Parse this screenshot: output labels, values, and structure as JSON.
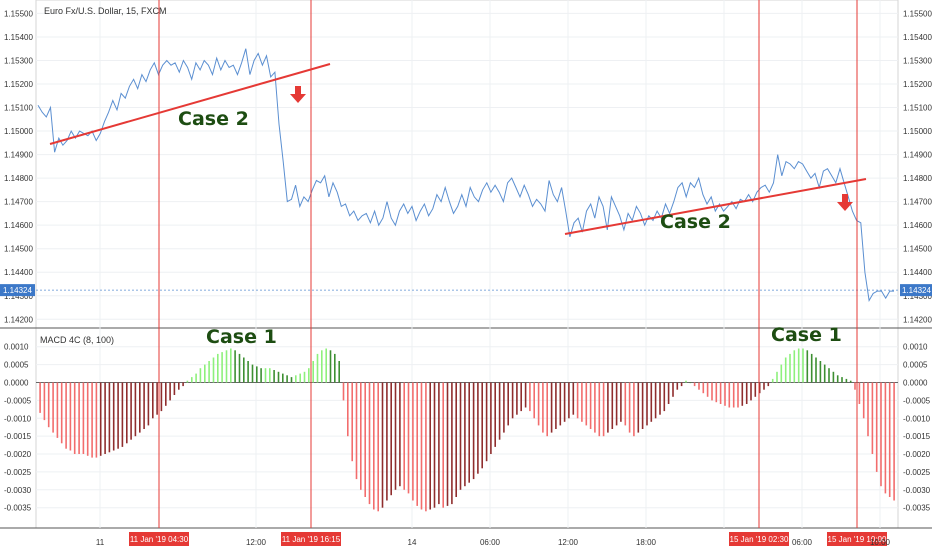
{
  "chart_data": [
    {
      "type": "line",
      "title": "Euro Fx/U.S. Dollar, 15, FXCM",
      "y_ticks": [
        "1.15500",
        "1.15400",
        "1.15300",
        "1.15200",
        "1.15100",
        "1.15000",
        "1.14900",
        "1.14800",
        "1.14700",
        "1.14600",
        "1.14500",
        "1.14400",
        "1.14300",
        "1.14200"
      ],
      "ylim": [
        1.1418,
        1.1554
      ],
      "x_labels": [
        "11",
        "12:00",
        "14",
        "06:00",
        "12:00",
        "18:00",
        "06:00",
        "10:00"
      ],
      "last_price": "1.14324",
      "grid": true,
      "series": [
        {
          "color": "#5b8fd1",
          "values": [
            1.1511,
            1.1508,
            1.1506,
            1.151,
            1.1491,
            1.1497,
            1.1494,
            1.1496,
            1.15,
            1.1497,
            1.15,
            1.1499,
            1.1498,
            1.15,
            1.1496,
            1.1499,
            1.1504,
            1.1508,
            1.1513,
            1.1509,
            1.1516,
            1.1514,
            1.1519,
            1.1522,
            1.1518,
            1.1524,
            1.1521,
            1.1526,
            1.1529,
            1.1524,
            1.1528,
            1.153,
            1.1528,
            1.1529,
            1.1525,
            1.153,
            1.1527,
            1.1522,
            1.1529,
            1.1526,
            1.153,
            1.1528,
            1.1524,
            1.1531,
            1.1526,
            1.153,
            1.1527,
            1.1528,
            1.1524,
            1.1529,
            1.1535,
            1.1524,
            1.153,
            1.1533,
            1.1528,
            1.1532,
            1.1523,
            1.1525,
            1.1503,
            1.1487,
            1.147,
            1.1471,
            1.1477,
            1.1468,
            1.1472,
            1.147,
            1.1475,
            1.1479,
            1.1478,
            1.1481,
            1.1472,
            1.1478,
            1.1474,
            1.1468,
            1.1469,
            1.1464,
            1.1466,
            1.1462,
            1.1464,
            1.1465,
            1.1461,
            1.1466,
            1.146,
            1.1463,
            1.147,
            1.1463,
            1.146,
            1.1466,
            1.1469,
            1.1465,
            1.1468,
            1.1462,
            1.1466,
            1.1469,
            1.1464,
            1.1467,
            1.1473,
            1.147,
            1.1476,
            1.147,
            1.1465,
            1.1468,
            1.1473,
            1.1468,
            1.1476,
            1.1472,
            1.147,
            1.1475,
            1.1478,
            1.1474,
            1.1477,
            1.1474,
            1.147,
            1.1478,
            1.148,
            1.1476,
            1.1472,
            1.1477,
            1.1473,
            1.1468,
            1.1471,
            1.1469,
            1.1466,
            1.1479,
            1.1473,
            1.147,
            1.1476,
            1.1466,
            1.1455,
            1.1461,
            1.1463,
            1.1457,
            1.1466,
            1.1469,
            1.1463,
            1.1472,
            1.1468,
            1.1458,
            1.1472,
            1.1468,
            1.1464,
            1.1458,
            1.1465,
            1.1462,
            1.1468,
            1.1465,
            1.146,
            1.1464,
            1.1462,
            1.1466,
            1.1463,
            1.1469,
            1.1465,
            1.147,
            1.1476,
            1.1478,
            1.1472,
            1.1478,
            1.1476,
            1.148,
            1.1473,
            1.1469,
            1.1472,
            1.1466,
            1.1469,
            1.1466,
            1.1468,
            1.147,
            1.1467,
            1.1471,
            1.147,
            1.1473,
            1.147,
            1.1474,
            1.1476,
            1.1477,
            1.1474,
            1.1478,
            1.149,
            1.1481,
            1.1487,
            1.1486,
            1.1484,
            1.1487,
            1.1486,
            1.1483,
            1.148,
            1.1482,
            1.1476,
            1.1483,
            1.1484,
            1.1481,
            1.1478,
            1.1484,
            1.1478,
            1.1472,
            1.1466,
            1.1462,
            1.1461,
            1.144,
            1.1428,
            1.1431,
            1.1432,
            1.1432,
            1.1429,
            1.1432,
            1.1432
          ]
        }
      ],
      "annotations": [
        "Case 2",
        "Case 2"
      ]
    },
    {
      "type": "bar",
      "title": "MACD 4C (8, 100)",
      "y_ticks": [
        "0.0010",
        "0.0005",
        "0.0000",
        "-0.0005",
        "-0.0010",
        "-0.0015",
        "-0.0020",
        "-0.0025",
        "-0.0030",
        "-0.0035"
      ],
      "ylim": [
        -0.0039,
        0.0013
      ],
      "colors": {
        "pos_up": "#8ef07c",
        "pos_down": "#3d8f32",
        "neg_down": "#f26d6d",
        "neg_up": "#8f2d2d"
      },
      "values": [
        -0.00085,
        -0.00105,
        -0.00125,
        -0.0014,
        -0.00155,
        -0.0017,
        -0.00185,
        -0.0019,
        -0.002,
        -0.002,
        -0.002,
        -0.00205,
        -0.0021,
        -0.0021,
        -0.00205,
        -0.002,
        -0.00195,
        -0.0019,
        -0.00185,
        -0.0018,
        -0.0017,
        -0.0016,
        -0.0015,
        -0.0014,
        -0.0013,
        -0.0012,
        -0.001,
        -0.0009,
        -0.0008,
        -0.00065,
        -0.0005,
        -0.00035,
        -0.0002,
        -0.0001,
        5e-05,
        0.00015,
        0.00025,
        0.0004,
        0.0005,
        0.0006,
        0.0007,
        0.0008,
        0.00085,
        0.0009,
        0.00095,
        0.0009,
        0.0008,
        0.0007,
        0.0006,
        0.0005,
        0.00045,
        0.0004,
        0.0004,
        0.0004,
        0.00035,
        0.0003,
        0.00025,
        0.0002,
        0.00015,
        0.0002,
        0.00025,
        0.0003,
        0.0004,
        0.0006,
        0.0008,
        0.0009,
        0.00095,
        0.0009,
        0.0008,
        0.0006,
        -0.0005,
        -0.0015,
        -0.0022,
        -0.0027,
        -0.003,
        -0.0032,
        -0.0034,
        -0.00355,
        -0.0036,
        -0.0035,
        -0.0033,
        -0.00315,
        -0.003,
        -0.0029,
        -0.003,
        -0.0031,
        -0.0033,
        -0.00345,
        -0.00355,
        -0.0036,
        -0.00355,
        -0.0035,
        -0.0034,
        -0.0035,
        -0.00345,
        -0.0034,
        -0.0032,
        -0.003,
        -0.0029,
        -0.0028,
        -0.0027,
        -0.00255,
        -0.0024,
        -0.0022,
        -0.002,
        -0.0018,
        -0.0016,
        -0.0014,
        -0.0012,
        -0.001,
        -0.0009,
        -0.0008,
        -0.0007,
        -0.0008,
        -0.001,
        -0.0012,
        -0.0014,
        -0.0015,
        -0.0014,
        -0.0013,
        -0.0012,
        -0.0011,
        -0.001,
        -0.0009,
        -0.001,
        -0.0011,
        -0.0012,
        -0.0013,
        -0.0014,
        -0.0015,
        -0.0015,
        -0.0014,
        -0.0013,
        -0.0012,
        -0.0011,
        -0.0012,
        -0.0014,
        -0.0015,
        -0.0014,
        -0.0013,
        -0.0012,
        -0.0011,
        -0.001,
        -0.0009,
        -0.0008,
        -0.0006,
        -0.0004,
        -0.0002,
        -0.0001,
        5e-05,
        0.0,
        -0.0001,
        -0.0002,
        -0.0003,
        -0.0004,
        -0.0005,
        -0.00055,
        -0.0006,
        -0.00065,
        -0.0007,
        -0.0007,
        -0.0007,
        -0.00065,
        -0.0006,
        -0.0005,
        -0.0004,
        -0.0003,
        -0.0002,
        -0.0001,
        0.0001,
        0.0003,
        0.0005,
        0.0007,
        0.0008,
        0.0009,
        0.00095,
        0.00095,
        0.0009,
        0.0008,
        0.0007,
        0.0006,
        0.0005,
        0.0004,
        0.0003,
        0.0002,
        0.00015,
        0.0001,
        5e-05,
        -0.0002,
        -0.0006,
        -0.001,
        -0.0015,
        -0.002,
        -0.0025,
        -0.0029,
        -0.0031,
        -0.0032,
        -0.0033
      ],
      "annotations": [
        "Case 1",
        "Case 1"
      ]
    }
  ],
  "markers": {
    "vertical_line_color": "#e53935",
    "time_tags": [
      "11 Jan '19  04:30",
      "11 Jan '19  16:15",
      "15 Jan '19  02:30",
      "15 Jan '19  10:00"
    ],
    "arrow_icon": "down-arrow-icon",
    "arrow_color": "#e53935"
  }
}
